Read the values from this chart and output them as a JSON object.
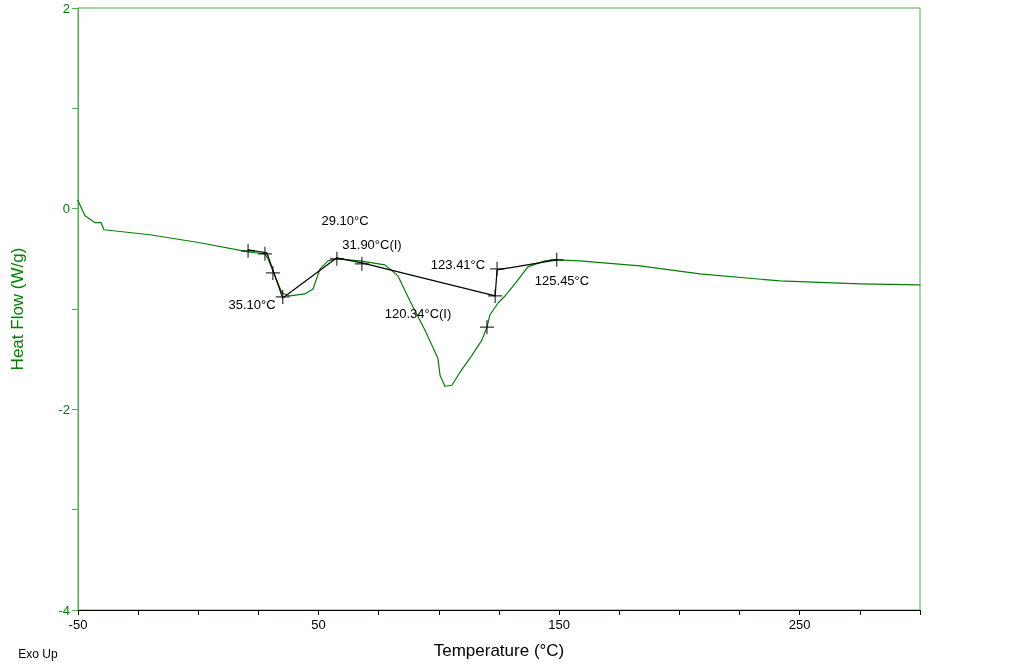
{
  "chart_data": {
    "type": "line",
    "xlabel": "Temperature (°C)",
    "ylabel": "Heat Flow (W/g)",
    "xlim": [
      -50,
      300
    ],
    "ylim": [
      -4,
      2
    ],
    "xticks": [
      -50,
      {
        "value": -25,
        "label": null
      },
      {
        "value": 0,
        "label": null
      },
      {
        "value": 25,
        "label": null
      },
      50,
      {
        "value": 75,
        "label": null
      },
      {
        "value": 100,
        "label": null
      },
      {
        "value": 125,
        "label": null
      },
      150,
      {
        "value": 175,
        "label": null
      },
      {
        "value": 200,
        "label": null
      },
      {
        "value": 225,
        "label": null
      },
      250,
      {
        "value": 275,
        "label": null
      },
      {
        "value": 300,
        "label": null
      }
    ],
    "yticks": [
      -4,
      {
        "value": -3,
        "label": null
      },
      -2,
      {
        "value": -1,
        "label": null
      },
      0,
      {
        "value": 1,
        "label": null
      },
      2
    ],
    "grid": false,
    "marker": "none",
    "line_style": "solid",
    "series": [
      {
        "color": "#008000",
        "x": [
          -50,
          -47.1,
          -42.9,
          -40.4,
          -39.2,
          -20.1,
          0.7,
          20.7,
          27.7,
          29,
          31,
          34.8,
          38.1,
          44.3,
          47.7,
          50.6,
          53.9,
          57.6,
          67.2,
          77.6,
          83,
          88,
          94.2,
          99.6,
          100.5,
          102.5,
          105.4,
          108.8,
          113.8,
          117.9,
          120,
          121.2,
          124.6,
          127.5,
          131.6,
          137,
          144.1,
          149.1,
          158.6,
          183.6,
          208.5,
          241.8,
          275,
          300
        ],
        "values": [
          0.08,
          -0.07,
          -0.14,
          -0.14,
          -0.21,
          -0.26,
          -0.34,
          -0.43,
          -0.45,
          -0.5,
          -0.62,
          -0.84,
          -0.87,
          -0.85,
          -0.8,
          -0.6,
          -0.52,
          -0.5,
          -0.52,
          -0.56,
          -0.67,
          -0.92,
          -1.21,
          -1.49,
          -1.66,
          -1.77,
          -1.76,
          -1.63,
          -1.46,
          -1.31,
          -1.18,
          -1.06,
          -0.94,
          -0.87,
          -0.75,
          -0.58,
          -0.52,
          -0.51,
          -0.52,
          -0.57,
          -0.65,
          -0.72,
          -0.75,
          -0.76
        ]
      },
      {
        "color": "#000000",
        "x": [
          20.7,
          28.5,
          35.1,
          57.6,
          68,
          123.4,
          124.2,
          149
        ],
        "values": [
          -0.41,
          -0.44,
          -0.89,
          -0.49,
          -0.54,
          -0.87,
          -0.61,
          -0.51
        ]
      },
      {
        "type": "scatter",
        "marker": "cross",
        "color": "#000000",
        "x": [
          20.7,
          27.7,
          31,
          35.1,
          57.6,
          68,
          123.4,
          124.2,
          120,
          149
        ],
        "values": [
          -0.42,
          -0.45,
          -0.64,
          -0.88,
          -0.5,
          -0.55,
          -0.87,
          -0.6,
          -1.18,
          -0.51
        ]
      }
    ],
    "annotations": [
      "29.10°C",
      "31.90°C(I)",
      "35.10°C",
      "123.41°C",
      "120.34°C(I)",
      "125.45°C",
      "Exo Up"
    ]
  }
}
